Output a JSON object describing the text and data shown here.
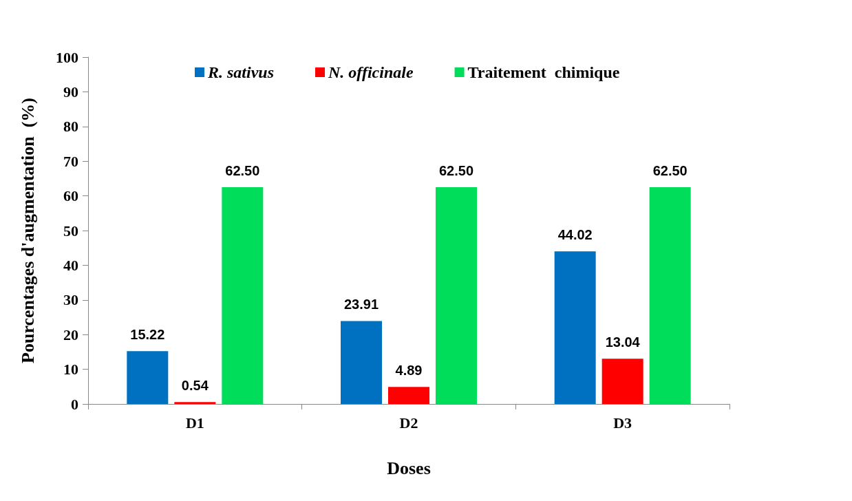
{
  "chart_data": {
    "type": "bar",
    "xlabel": "Doses",
    "ylabel": "Pourcentages d'augmentation  (%)",
    "categories": [
      "D1",
      "D2",
      "D3"
    ],
    "series": [
      {
        "name": "R. sativus",
        "color": "#0070c0",
        "values": [
          15.22,
          23.91,
          44.02
        ],
        "value_labels": [
          "15.22",
          "23.91",
          "44.02"
        ]
      },
      {
        "name": "N. officinale",
        "color": "#ff0000",
        "values": [
          0.54,
          4.89,
          13.04
        ],
        "value_labels": [
          "0.54",
          "4.89",
          "13.04"
        ]
      },
      {
        "name": "Traitement  chimique",
        "color": "#00dd5a",
        "values": [
          62.5,
          62.5,
          62.5
        ],
        "value_labels": [
          "62.50",
          "62.50",
          "62.50"
        ]
      }
    ],
    "ylim": [
      0,
      100
    ],
    "yticks": [
      0,
      10,
      20,
      30,
      40,
      50,
      60,
      70,
      80,
      90,
      100
    ],
    "grid": false,
    "legend": "top"
  }
}
